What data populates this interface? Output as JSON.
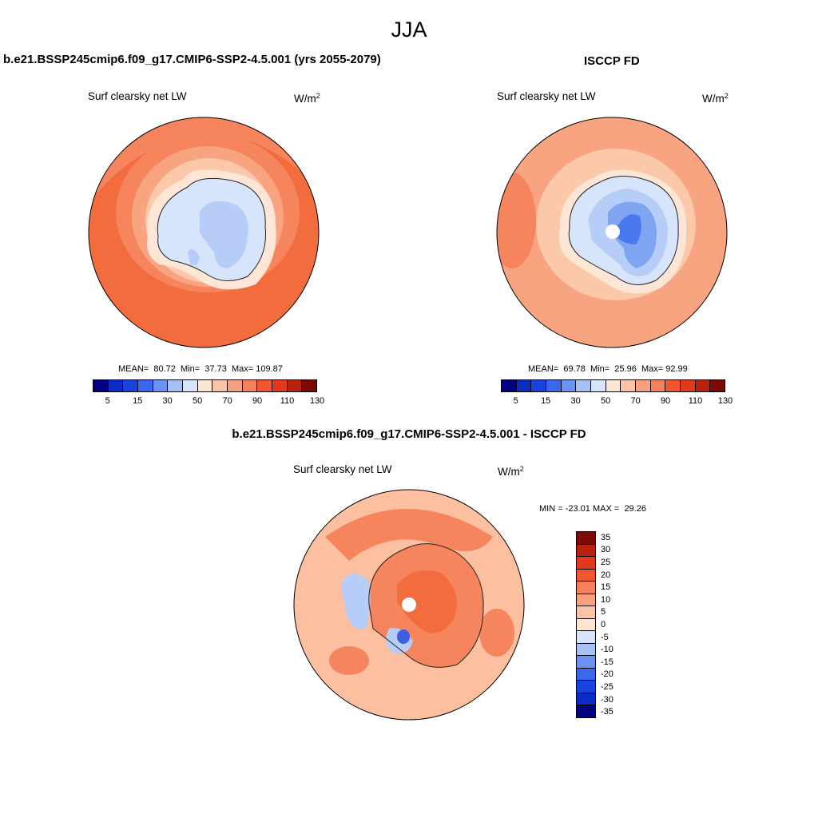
{
  "header": {
    "title": "JJA"
  },
  "panels": [
    {
      "title": "b.e21.BSSP245cmip6.f09_g17.CMIP6-SSP2-4.5.001 (yrs 2055-2079)",
      "variable": "Surf clearsky net LW",
      "unit": "W/m",
      "unit_exp": "2",
      "stats": {
        "mean_label": "MEAN=",
        "mean": "80.72",
        "min_label": "Min=",
        "min": "37.73",
        "max_label": "Max=",
        "max": "109.87"
      }
    },
    {
      "title": "ISCCP FD",
      "variable": "Surf clearsky net LW",
      "unit": "W/m",
      "unit_exp": "2",
      "stats": {
        "mean_label": "MEAN=",
        "mean": "69.78",
        "min_label": "Min=",
        "min": "25.96",
        "max_label": "Max=",
        "max": "92.99"
      }
    },
    {
      "title": "b.e21.BSSP245cmip6.f09_g17.CMIP6-SSP2-4.5.001 - ISCCP FD",
      "variable": "Surf clearsky net LW",
      "unit": "W/m",
      "unit_exp": "2",
      "stats": {
        "min_label": "MIN =",
        "min": "-23.01",
        "max_label": "MAX =",
        "max": "29.26"
      }
    }
  ],
  "colorbar_abs": {
    "tick_labels": [
      "5",
      "15",
      "30",
      "50",
      "70",
      "90",
      "110",
      "130"
    ],
    "colors": [
      "#000080",
      "#0a2cc2",
      "#1744dc",
      "#3b67ee",
      "#6a92f4",
      "#a6c1f6",
      "#d6e5fb",
      "#fde5d4",
      "#fcc4a6",
      "#f9a07e",
      "#f6805b",
      "#f2562f",
      "#e2381c",
      "#b7230e",
      "#7c0a04"
    ]
  },
  "colorbar_diff": {
    "tick_labels": [
      "35",
      "30",
      "25",
      "20",
      "15",
      "10",
      "5",
      "0",
      "-5",
      "-10",
      "-15",
      "-20",
      "-25",
      "-30",
      "-35"
    ],
    "colors": [
      "#7c0a04",
      "#b7230e",
      "#e2381c",
      "#f2562f",
      "#f6805b",
      "#f9a07e",
      "#fcc4a6",
      "#fde5d4",
      "#d6e5fb",
      "#a6c1f6",
      "#6a92f4",
      "#3b67ee",
      "#1744dc",
      "#0a2cc2",
      "#000080"
    ]
  },
  "map_colors": {
    "ocean_hi": "#f26c3d",
    "ocean_mid": "#f6845c",
    "ocean_lo": "#f9a481",
    "coast": "#fcc8aa",
    "ice_edge": "#fde6d5",
    "land_lo": "#d6e5fb",
    "land_mid": "#b6cdf7",
    "land_deep": "#7ea4f2",
    "land_deepest": "#4a79ee",
    "diff_warm": "#f6845c",
    "diff_hot": "#f26c3d",
    "diff_mild": "#fcc0a0",
    "diff_cool": "#b6cdf7",
    "diff_cold": "#3b5fe0",
    "pole_mask": "#ffffff"
  }
}
